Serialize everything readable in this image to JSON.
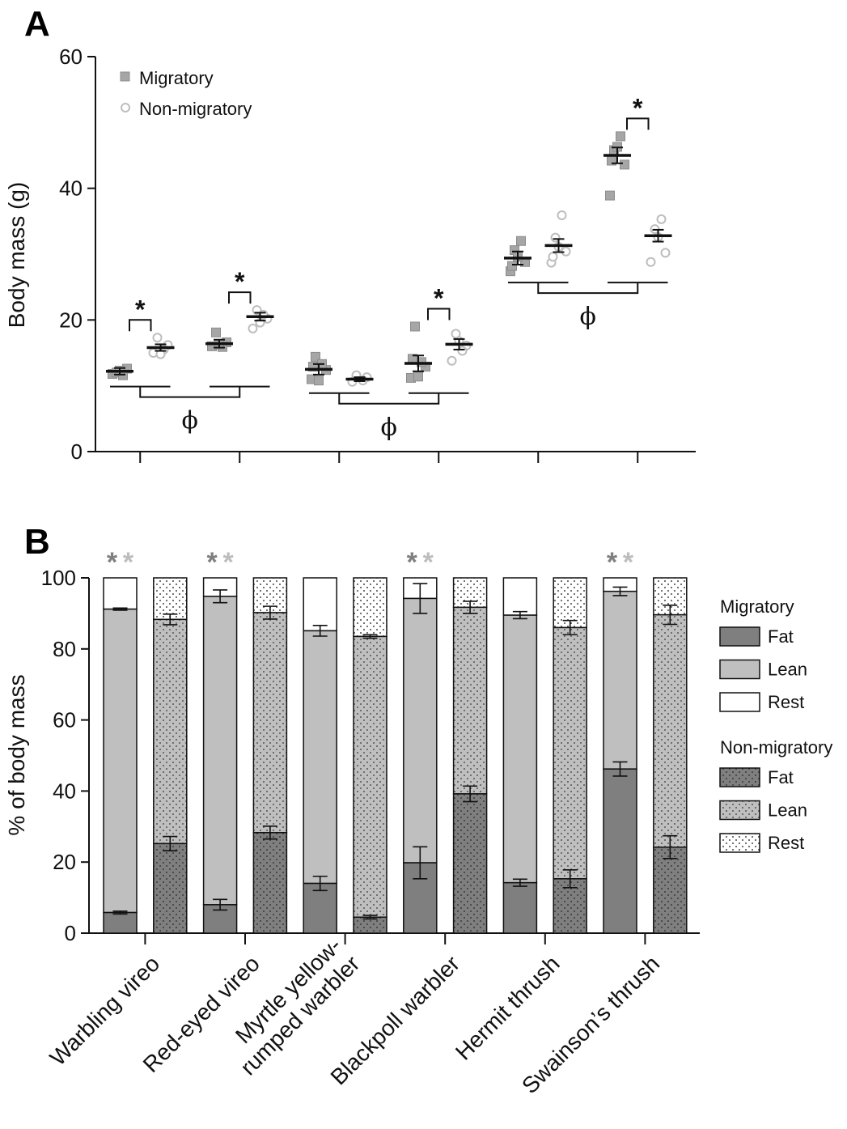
{
  "panel_labels": [
    "A",
    "B"
  ],
  "colors": {
    "migratory_marker": "#a6a6a6",
    "migratory_marker_stroke": "#8c8c8c",
    "nonmigratory_marker": "#bdbdbd",
    "fat": "#7f7f7f",
    "lean": "#bfbfbf",
    "rest": "#ffffff",
    "star_dark": "#7f7f7f",
    "star_light": "#bdbdbd"
  },
  "chart_data": [
    {
      "type": "scatter",
      "panel": "A",
      "ylabel": "Body mass (g)",
      "ylim": [
        0,
        60
      ],
      "yticks": [
        0,
        20,
        40,
        60
      ],
      "legend": [
        "Migratory",
        "Non-migratory"
      ],
      "legend_position": "top-left",
      "series": [
        {
          "name": "Migratory",
          "marker": "square",
          "group": [
            0,
            2,
            4,
            6,
            8,
            10
          ],
          "means": [
            12.2,
            16.4,
            12.5,
            13.4,
            29.4,
            45.0
          ],
          "sem": [
            0.5,
            0.6,
            0.8,
            1.2,
            1.0,
            1.2
          ],
          "points": [
            [
              11.8,
              12.6,
              12.0,
              11.6,
              12.3
            ],
            [
              16.0,
              16.6,
              18.1,
              15.9,
              16.3
            ],
            [
              11.0,
              12.4,
              14.4,
              13.3,
              10.8,
              12.9
            ],
            [
              11.2,
              12.9,
              19.0,
              13.6,
              11.4,
              14.1
            ],
            [
              27.4,
              28.8,
              30.6,
              32.0,
              29.6,
              28.2
            ],
            [
              38.9,
              43.6,
              45.8,
              47.9,
              46.3,
              44.2
            ]
          ]
        },
        {
          "name": "Non-migratory",
          "marker": "circle",
          "group": [
            1,
            3,
            5,
            7,
            9,
            11
          ],
          "means": [
            15.8,
            20.5,
            11.0,
            16.3,
            31.3,
            32.8
          ],
          "sem": [
            0.5,
            0.6,
            0.3,
            0.8,
            1.0,
            0.9
          ],
          "points": [
            [
              15.0,
              16.2,
              17.3,
              15.5,
              14.8
            ],
            [
              18.7,
              20.2,
              21.5,
              20.8,
              19.6
            ],
            [
              10.6,
              11.3,
              11.6,
              10.8
            ],
            [
              13.8,
              16.1,
              17.9,
              15.3,
              16.8
            ],
            [
              28.7,
              30.4,
              32.5,
              35.9,
              31.1,
              29.6
            ],
            [
              28.8,
              30.2,
              33.8,
              35.3,
              32.6
            ]
          ]
        }
      ],
      "significance": [
        {
          "groups": [
            0,
            1
          ],
          "label": "*"
        },
        {
          "groups": [
            2,
            3
          ],
          "label": "*"
        },
        {
          "groups": [
            6,
            7
          ],
          "label": "*"
        },
        {
          "groups": [
            10,
            11
          ],
          "label": "*"
        }
      ],
      "phi_brackets": [
        {
          "groups": [
            [
              0,
              1
            ],
            [
              2,
              3
            ]
          ],
          "label": "ϕ"
        },
        {
          "groups": [
            [
              4,
              5
            ],
            [
              6,
              7
            ]
          ],
          "label": "ϕ"
        },
        {
          "groups": [
            [
              8,
              9
            ],
            [
              10,
              11
            ]
          ],
          "label": "ϕ"
        }
      ]
    },
    {
      "type": "bar",
      "stacked": true,
      "panel": "B",
      "ylabel": "% of body mass",
      "ylim": [
        0,
        100
      ],
      "yticks": [
        0,
        20,
        40,
        60,
        80,
        100
      ],
      "categories": [
        "Warbling vireo",
        "Red-eyed vireo",
        "Myrtle yellow-rumped warbler",
        "Blackpoll warbler",
        "Hermit thrush",
        "Swainson’s thrush"
      ],
      "category_lines": [
        [
          "Warbling vireo"
        ],
        [
          "Red-eyed vireo"
        ],
        [
          "Myrtle yellow-",
          "rumped warbler"
        ],
        [
          "Blackpoll warbler"
        ],
        [
          "Hermit thrush"
        ],
        [
          "Swainson’s thrush"
        ]
      ],
      "legend_position": "right",
      "legend_groups": [
        {
          "title": "Migratory",
          "items": [
            "Fat",
            "Lean",
            "Rest"
          ]
        },
        {
          "title": "Non-migratory",
          "items": [
            "Fat",
            "Lean",
            "Rest"
          ]
        }
      ],
      "series": [
        {
          "name": "Migratory",
          "fat": [
            5.8,
            8.0,
            14.0,
            19.8,
            14.2,
            46.2
          ],
          "fat_err": [
            0.4,
            1.5,
            2.0,
            4.5,
            1.0,
            2.0
          ],
          "fat_plus_lean": [
            91.2,
            94.8,
            85.1,
            94.2,
            89.5,
            96.2
          ],
          "fat_plus_lean_err": [
            0.3,
            1.8,
            1.5,
            4.2,
            1.0,
            1.2
          ]
        },
        {
          "name": "Non-migratory",
          "fat": [
            25.2,
            28.3,
            4.5,
            39.2,
            15.3,
            24.2
          ],
          "fat_err": [
            2.0,
            1.8,
            0.5,
            2.2,
            2.5,
            3.2
          ],
          "fat_plus_lean": [
            88.3,
            90.2,
            83.5,
            91.7,
            86.0,
            89.6
          ],
          "fat_plus_lean_err": [
            1.5,
            1.8,
            0.5,
            1.7,
            2.0,
            2.7
          ]
        }
      ],
      "significance": [
        {
          "category": 0,
          "label": "**"
        },
        {
          "category": 1,
          "label": "**"
        },
        {
          "category": 3,
          "label": "**"
        },
        {
          "category": 5,
          "label": "**"
        }
      ]
    }
  ]
}
